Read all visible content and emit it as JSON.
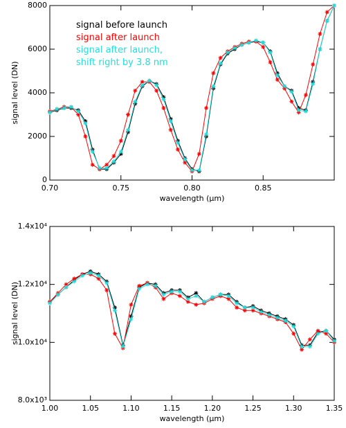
{
  "chart_data": [
    {
      "type": "line",
      "xlabel": "wavelength (μm)",
      "ylabel": "signal level (DN)",
      "legend": "upper left",
      "x": [
        0.7,
        0.705,
        0.71,
        0.715,
        0.72,
        0.725,
        0.73,
        0.735,
        0.74,
        0.745,
        0.75,
        0.755,
        0.76,
        0.765,
        0.77,
        0.775,
        0.78,
        0.785,
        0.79,
        0.795,
        0.8,
        0.805,
        0.81,
        0.815,
        0.82,
        0.825,
        0.83,
        0.835,
        0.84,
        0.845,
        0.85,
        0.855,
        0.86,
        0.865,
        0.87,
        0.875,
        0.88,
        0.885,
        0.89,
        0.895,
        0.9
      ],
      "series": [
        {
          "name": "signal before launch",
          "color": "#000000",
          "values": [
            3100,
            3200,
            3300,
            3300,
            3200,
            2700,
            1400,
            500,
            500,
            800,
            1200,
            2200,
            3500,
            4300,
            4550,
            4400,
            3800,
            2800,
            1800,
            1000,
            500,
            400,
            2000,
            4200,
            5300,
            5800,
            6000,
            6200,
            6300,
            6350,
            6300,
            5900,
            4900,
            4300,
            4100,
            3300,
            3200,
            4500,
            6000,
            7300,
            8000
          ]
        },
        {
          "name": "signal after launch",
          "color": "#ff0000",
          "values": [
            3150,
            3250,
            3350,
            3350,
            3000,
            2000,
            700,
            500,
            700,
            1100,
            1800,
            3000,
            4100,
            4500,
            4500,
            4100,
            3300,
            2300,
            1400,
            800,
            400,
            1200,
            3300,
            4900,
            5600,
            5900,
            6100,
            6250,
            6350,
            6350,
            6100,
            5400,
            4600,
            4200,
            3600,
            3100,
            3900,
            5300,
            6700,
            7700,
            8000
          ]
        },
        {
          "name": "signal after launch,\nshift right by 3.8 nm",
          "color": "#22dddd",
          "values": [
            3100,
            3250,
            3300,
            3350,
            3150,
            2600,
            1300,
            550,
            550,
            850,
            1300,
            2300,
            3600,
            4350,
            4550,
            4350,
            3700,
            2700,
            1700,
            950,
            450,
            450,
            2100,
            4300,
            5350,
            5850,
            6050,
            6200,
            6300,
            6400,
            6300,
            5850,
            4800,
            4300,
            4050,
            3200,
            3150,
            4400,
            6000,
            7300,
            8000
          ]
        }
      ],
      "xlim": [
        0.7,
        0.9
      ],
      "ylim": [
        0,
        8000
      ],
      "xticks": [
        {
          "value": 0.7,
          "label": "0.70"
        },
        0.75,
        {
          "value": 0.8,
          "label": "0.80"
        },
        0.85
      ],
      "yticks": [
        0,
        2000,
        4000,
        6000,
        8000
      ]
    },
    {
      "type": "line",
      "xlabel": "wavelength (μm)",
      "ylabel": "signal level (DN)",
      "x": [
        1.0,
        1.01,
        1.02,
        1.03,
        1.04,
        1.05,
        1.06,
        1.07,
        1.08,
        1.09,
        1.1,
        1.11,
        1.12,
        1.13,
        1.14,
        1.15,
        1.16,
        1.17,
        1.18,
        1.19,
        1.2,
        1.21,
        1.22,
        1.23,
        1.24,
        1.25,
        1.26,
        1.27,
        1.28,
        1.29,
        1.3,
        1.31,
        1.32,
        1.33,
        1.34,
        1.35
      ],
      "series": [
        {
          "color": "#000000",
          "values": [
            11400,
            11650,
            11900,
            12150,
            12350,
            12450,
            12350,
            12100,
            11200,
            9900,
            10900,
            11900,
            12050,
            12000,
            11700,
            11800,
            11800,
            11550,
            11700,
            11400,
            11550,
            11650,
            11650,
            11400,
            11200,
            11250,
            11100,
            11000,
            10900,
            10800,
            10600,
            9900,
            9900,
            10350,
            10400,
            10100
          ]
        },
        {
          "color": "#ff0000",
          "values": [
            11400,
            11700,
            12000,
            12200,
            12350,
            12350,
            12200,
            11800,
            10300,
            9800,
            11300,
            11950,
            12050,
            11900,
            11500,
            11700,
            11600,
            11400,
            11300,
            11350,
            11500,
            11600,
            11500,
            11200,
            11100,
            11100,
            11000,
            10900,
            10800,
            10700,
            10300,
            9750,
            10100,
            10400,
            10300,
            10000
          ]
        },
        {
          "color": "#22dddd",
          "values": [
            11350,
            11650,
            11900,
            12100,
            12300,
            12400,
            12300,
            12050,
            11100,
            9850,
            10800,
            11850,
            12000,
            11950,
            11650,
            11750,
            11750,
            11500,
            11600,
            11400,
            11550,
            11650,
            11600,
            11350,
            11200,
            11200,
            11050,
            10950,
            10850,
            10750,
            10550,
            9850,
            9850,
            10300,
            10400,
            10050
          ]
        }
      ],
      "xlim": [
        1.0,
        1.35
      ],
      "ylim": [
        8000,
        14000
      ],
      "xticks": [
        {
          "value": 1.0,
          "label": "1.00"
        },
        1.05,
        {
          "value": 1.1,
          "label": "1.10"
        },
        1.15,
        {
          "value": 1.2,
          "label": "1.20"
        },
        1.25,
        {
          "value": 1.3,
          "label": "1.30"
        },
        1.35
      ],
      "yticks": [
        {
          "value": 8000,
          "label": "8.0x10³"
        },
        {
          "value": 10000,
          "label": "1.0x10⁴"
        },
        {
          "value": 12000,
          "label": "1.2x10⁴"
        },
        {
          "value": 14000,
          "label": "1.4x10⁴"
        }
      ]
    }
  ]
}
